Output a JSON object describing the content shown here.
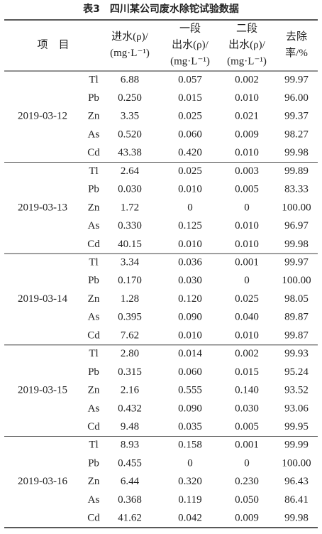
{
  "title": "表3　四川某公司废水除铊试验数据",
  "table": {
    "header": {
      "item": "项　目",
      "columns": [
        [
          "进水(ρ)/",
          "(mg·L⁻¹)"
        ],
        [
          "一段",
          "出水(ρ)/",
          "(mg·L⁻¹)"
        ],
        [
          "二段",
          "出水(ρ)/",
          "(mg·L⁻¹)"
        ],
        [
          "去除",
          "率/%"
        ]
      ]
    },
    "groups": [
      {
        "date": "2019-03-12",
        "rows": [
          [
            "Tl",
            "6.88",
            "0.057",
            "0.002",
            "99.97"
          ],
          [
            "Pb",
            "0.250",
            "0.015",
            "0.010",
            "96.00"
          ],
          [
            "Zn",
            "3.35",
            "0.025",
            "0.021",
            "99.37"
          ],
          [
            "As",
            "0.520",
            "0.060",
            "0.009",
            "98.27"
          ],
          [
            "Cd",
            "43.38",
            "0.420",
            "0.010",
            "99.98"
          ]
        ]
      },
      {
        "date": "2019-03-13",
        "rows": [
          [
            "Tl",
            "2.64",
            "0.025",
            "0.003",
            "99.89"
          ],
          [
            "Pb",
            "0.030",
            "0.010",
            "0.005",
            "83.33"
          ],
          [
            "Zn",
            "1.72",
            "0",
            "0",
            "100.00"
          ],
          [
            "As",
            "0.330",
            "0.125",
            "0.010",
            "96.97"
          ],
          [
            "Cd",
            "40.15",
            "0.010",
            "0.010",
            "99.98"
          ]
        ]
      },
      {
        "date": "2019-03-14",
        "rows": [
          [
            "Tl",
            "3.34",
            "0.036",
            "0.001",
            "99.97"
          ],
          [
            "Pb",
            "0.170",
            "0.030",
            "0",
            "100.00"
          ],
          [
            "Zn",
            "1.28",
            "0.120",
            "0.025",
            "98.05"
          ],
          [
            "As",
            "0.395",
            "0.090",
            "0.040",
            "89.87"
          ],
          [
            "Cd",
            "7.62",
            "0.010",
            "0.010",
            "99.87"
          ]
        ]
      },
      {
        "date": "2019-03-15",
        "rows": [
          [
            "Tl",
            "2.80",
            "0.014",
            "0.002",
            "99.93"
          ],
          [
            "Pb",
            "0.315",
            "0.060",
            "0.015",
            "95.24"
          ],
          [
            "Zn",
            "2.16",
            "0.555",
            "0.140",
            "93.52"
          ],
          [
            "As",
            "0.432",
            "0.090",
            "0.030",
            "93.06"
          ],
          [
            "Cd",
            "9.48",
            "0.035",
            "0.005",
            "99.95"
          ]
        ]
      },
      {
        "date": "2019-03-16",
        "rows": [
          [
            "Tl",
            "8.93",
            "0.158",
            "0.001",
            "99.99"
          ],
          [
            "Pb",
            "0.455",
            "0",
            "0",
            "100.00"
          ],
          [
            "Zn",
            "6.44",
            "0.320",
            "0.230",
            "96.43"
          ],
          [
            "As",
            "0.368",
            "0.119",
            "0.050",
            "86.41"
          ],
          [
            "Cd",
            "41.62",
            "0.042",
            "0.009",
            "99.98"
          ]
        ]
      }
    ]
  }
}
